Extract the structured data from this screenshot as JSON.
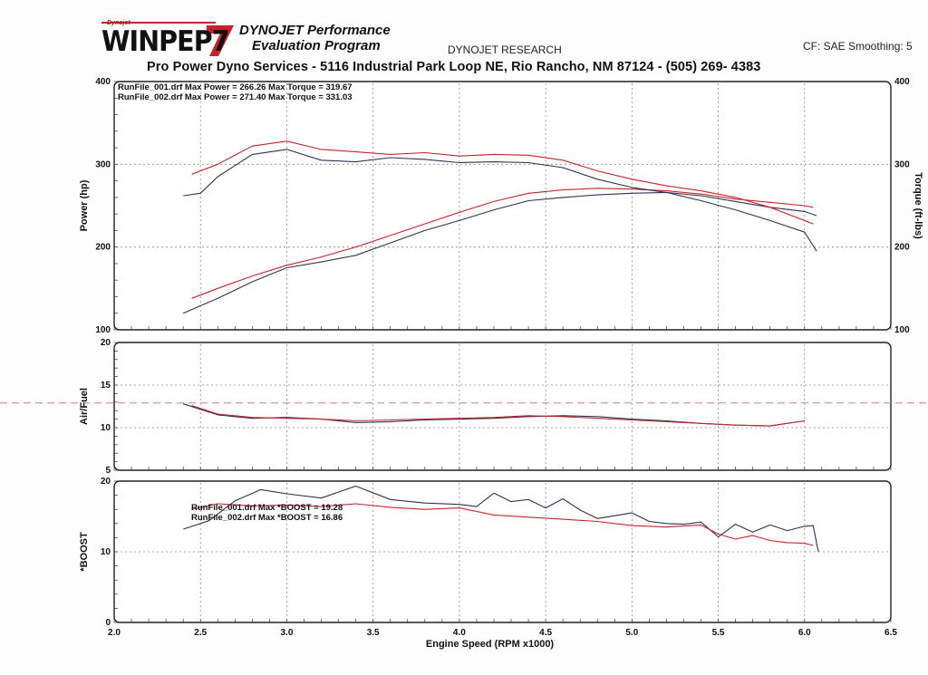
{
  "header": {
    "logo_small": "Dynojet",
    "logo_text": "WINPEP7",
    "title_line1": "DYNOJET Performance",
    "title_line2": "Evaluation Program",
    "research": "DYNOJET RESEARCH",
    "cf": "CF: SAE  Smoothing: 5",
    "address": "Pro Power Dyno Services - 5116 Industrial Park Loop NE, Rio Rancho, NM 87124 - (505) 269- 4383"
  },
  "colors": {
    "run1": "#2b3550",
    "run2": "#c8232d",
    "airfuel_target": "#e07a7a",
    "grid": "#888888"
  },
  "chart_data": [
    {
      "type": "line",
      "panel": "power-torque",
      "ylabel": "Power (hp)",
      "ylabel_right": "Torque (ft-lbs)",
      "ylim": [
        100,
        400
      ],
      "yticks": [
        100,
        200,
        300,
        400
      ],
      "xlim": [
        2.0,
        6.5
      ],
      "grid": true,
      "annotations": [
        "RunFile_001.drf Max Power = 266.26      Max Torque = 319.67",
        "RunFile_002.drf Max Power = 271.40      Max Torque = 331.03"
      ],
      "series": [
        {
          "name": "RunFile_001.drf Power",
          "run": 1,
          "x": [
            2.4,
            2.6,
            2.8,
            3.0,
            3.2,
            3.4,
            3.6,
            3.8,
            4.0,
            4.2,
            4.4,
            4.6,
            4.8,
            5.0,
            5.2,
            5.4,
            5.6,
            5.8,
            6.0,
            6.07
          ],
          "y": [
            120,
            138,
            158,
            175,
            182,
            190,
            205,
            220,
            232,
            245,
            256,
            260,
            263,
            265,
            266,
            262,
            255,
            248,
            243,
            238
          ]
        },
        {
          "name": "RunFile_002.drf Power",
          "run": 2,
          "x": [
            2.45,
            2.6,
            2.8,
            3.0,
            3.2,
            3.4,
            3.6,
            3.8,
            4.0,
            4.2,
            4.4,
            4.6,
            4.8,
            5.0,
            5.2,
            5.4,
            5.6,
            5.8,
            6.0,
            6.05
          ],
          "y": [
            138,
            150,
            165,
            178,
            188,
            200,
            214,
            228,
            242,
            255,
            265,
            269,
            271,
            270,
            268,
            264,
            258,
            254,
            250,
            248
          ]
        },
        {
          "name": "RunFile_001.drf Torque",
          "run": 1,
          "x": [
            2.4,
            2.5,
            2.6,
            2.8,
            3.0,
            3.2,
            3.4,
            3.6,
            3.8,
            4.0,
            4.2,
            4.4,
            4.6,
            4.8,
            5.0,
            5.2,
            5.4,
            5.6,
            5.8,
            6.0,
            6.07
          ],
          "y": [
            262,
            265,
            285,
            312,
            318,
            305,
            303,
            308,
            306,
            302,
            303,
            302,
            296,
            282,
            272,
            266,
            256,
            245,
            232,
            218,
            195
          ]
        },
        {
          "name": "RunFile_002.drf Torque",
          "run": 2,
          "x": [
            2.45,
            2.6,
            2.8,
            3.0,
            3.2,
            3.4,
            3.6,
            3.8,
            4.0,
            4.2,
            4.4,
            4.6,
            4.8,
            5.0,
            5.2,
            5.4,
            5.6,
            5.8,
            6.0,
            6.05
          ],
          "y": [
            288,
            300,
            322,
            328,
            318,
            315,
            312,
            314,
            310,
            312,
            311,
            305,
            292,
            282,
            274,
            268,
            260,
            248,
            232,
            228
          ]
        }
      ]
    },
    {
      "type": "line",
      "panel": "air-fuel",
      "ylabel": "Air/Fuel",
      "ylim": [
        5,
        20
      ],
      "yticks": [
        5,
        10,
        15,
        20
      ],
      "xlim": [
        2.0,
        6.5
      ],
      "grid": true,
      "target_line": 12.9,
      "series": [
        {
          "name": "RunFile_001.drf Air/Fuel",
          "run": 1,
          "x": [
            2.4,
            2.6,
            2.8,
            3.0,
            3.2,
            3.4,
            3.6,
            3.8,
            4.0,
            4.2,
            4.4,
            4.6,
            4.8,
            5.0,
            5.2,
            5.4,
            5.6,
            5.8,
            6.0
          ],
          "y": [
            12.8,
            11.5,
            11.1,
            11.2,
            11.0,
            10.6,
            10.7,
            10.9,
            11.0,
            11.1,
            11.3,
            11.4,
            11.3,
            11.0,
            10.8,
            10.5,
            10.3,
            10.2,
            10.8
          ]
        },
        {
          "name": "RunFile_002.drf Air/Fuel",
          "run": 2,
          "x": [
            2.45,
            2.6,
            2.8,
            3.0,
            3.2,
            3.4,
            3.6,
            3.8,
            4.0,
            4.2,
            4.4,
            4.6,
            4.8,
            5.0,
            5.2,
            5.4,
            5.6,
            5.8,
            6.0
          ],
          "y": [
            12.6,
            11.6,
            11.2,
            11.1,
            11.0,
            10.8,
            10.9,
            11.0,
            11.1,
            11.2,
            11.4,
            11.3,
            11.1,
            10.9,
            10.7,
            10.5,
            10.3,
            10.2,
            10.8
          ]
        }
      ]
    },
    {
      "type": "line",
      "panel": "boost",
      "ylabel": "*BOOST",
      "xlabel": "Engine Speed (RPM x1000)",
      "ylim": [
        0,
        20
      ],
      "yticks": [
        0,
        10,
        20
      ],
      "xlim": [
        2.0,
        6.5
      ],
      "xticks": [
        "2.0",
        "2.5",
        "3.0",
        "3.5",
        "4.0",
        "4.5",
        "5.0",
        "5.5",
        "6.0",
        "6.5"
      ],
      "grid": true,
      "annotations": [
        "RunFile_001.drf Max *BOOST = 19.28",
        "RunFile_002.drf Max *BOOST = 16.86"
      ],
      "series": [
        {
          "name": "RunFile_001.drf *BOOST",
          "run": 1,
          "x": [
            2.4,
            2.55,
            2.7,
            2.85,
            3.0,
            3.2,
            3.4,
            3.6,
            3.8,
            4.0,
            4.1,
            4.2,
            4.3,
            4.4,
            4.5,
            4.6,
            4.7,
            4.8,
            4.9,
            5.0,
            5.1,
            5.2,
            5.3,
            5.4,
            5.5,
            5.6,
            5.7,
            5.8,
            5.9,
            6.0,
            6.05,
            6.08
          ],
          "y": [
            13.2,
            14.4,
            17.2,
            18.8,
            18.2,
            17.6,
            19.3,
            17.4,
            16.9,
            16.7,
            16.4,
            18.3,
            17.1,
            17.4,
            16.2,
            17.5,
            15.9,
            14.7,
            15.1,
            15.5,
            14.3,
            14.0,
            13.9,
            14.2,
            12.1,
            13.9,
            12.8,
            13.8,
            13.0,
            13.6,
            13.7,
            10.0
          ]
        },
        {
          "name": "RunFile_002.drf *BOOST",
          "run": 2,
          "x": [
            2.45,
            2.6,
            2.8,
            3.0,
            3.2,
            3.4,
            3.6,
            3.8,
            4.0,
            4.2,
            4.4,
            4.6,
            4.8,
            5.0,
            5.2,
            5.4,
            5.5,
            5.6,
            5.7,
            5.8,
            5.9,
            6.0,
            6.05
          ],
          "y": [
            16.0,
            16.8,
            16.5,
            16.6,
            16.4,
            16.8,
            16.3,
            16.0,
            16.2,
            15.2,
            14.9,
            14.6,
            14.3,
            13.7,
            13.5,
            13.8,
            12.5,
            11.8,
            12.3,
            11.6,
            11.3,
            11.2,
            10.9
          ]
        }
      ]
    }
  ]
}
